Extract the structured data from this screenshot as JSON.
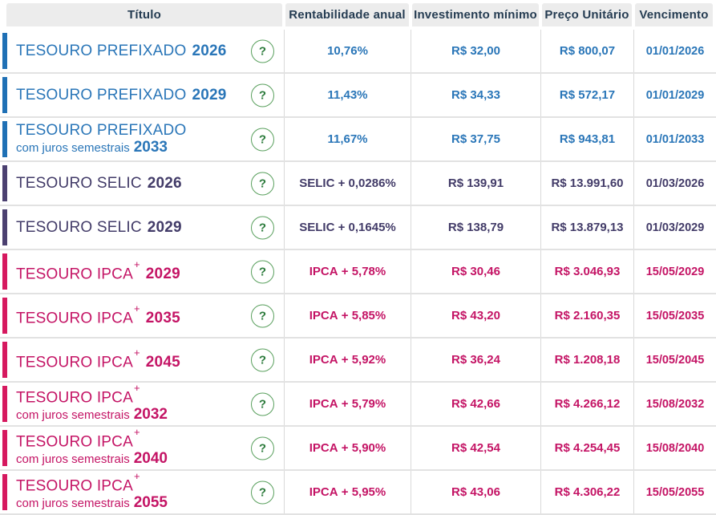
{
  "table": {
    "columns": [
      {
        "key": "titulo",
        "label": "Título"
      },
      {
        "key": "rentabilidade",
        "label": "Rentabilidade anual"
      },
      {
        "key": "investimento",
        "label": "Investimento mínimo"
      },
      {
        "key": "preco",
        "label": "Preço Unitário"
      },
      {
        "key": "vencimento",
        "label": "Vencimento"
      }
    ],
    "help_label": "?",
    "rows": [
      {
        "category": "prefixado",
        "name": "TESOURO PREFIXADO",
        "sup": "",
        "subtitle": "",
        "year": "2026",
        "rent_prefix": "",
        "rent_value": "10,76%",
        "investimento": "R$ 32,00",
        "preco": "R$ 800,07",
        "vencimento": "01/01/2026"
      },
      {
        "category": "prefixado",
        "name": "TESOURO PREFIXADO",
        "sup": "",
        "subtitle": "",
        "year": "2029",
        "rent_prefix": "",
        "rent_value": "11,43%",
        "investimento": "R$ 34,33",
        "preco": "R$ 572,17",
        "vencimento": "01/01/2029"
      },
      {
        "category": "prefixado",
        "name": "TESOURO PREFIXADO",
        "sup": "",
        "subtitle": "com juros semestrais",
        "year": "2033",
        "rent_prefix": "",
        "rent_value": "11,67%",
        "investimento": "R$ 37,75",
        "preco": "R$ 943,81",
        "vencimento": "01/01/2033"
      },
      {
        "category": "selic",
        "name": "TESOURO SELIC",
        "sup": "",
        "subtitle": "",
        "year": "2026",
        "rent_prefix": "SELIC",
        "rent_value": " + 0,0286%",
        "investimento": "R$ 139,91",
        "preco": "R$ 13.991,60",
        "vencimento": "01/03/2026"
      },
      {
        "category": "selic",
        "name": "TESOURO SELIC",
        "sup": "",
        "subtitle": "",
        "year": "2029",
        "rent_prefix": "SELIC",
        "rent_value": " + 0,1645%",
        "investimento": "R$ 138,79",
        "preco": "R$ 13.879,13",
        "vencimento": "01/03/2029"
      },
      {
        "category": "ipca",
        "name": "TESOURO IPCA",
        "sup": "+",
        "subtitle": "",
        "year": "2029",
        "rent_prefix": "IPCA",
        "rent_value": " + 5,78%",
        "investimento": "R$ 30,46",
        "preco": "R$ 3.046,93",
        "vencimento": "15/05/2029"
      },
      {
        "category": "ipca",
        "name": "TESOURO IPCA",
        "sup": "+",
        "subtitle": "",
        "year": "2035",
        "rent_prefix": "IPCA",
        "rent_value": " + 5,85%",
        "investimento": "R$ 43,20",
        "preco": "R$ 2.160,35",
        "vencimento": "15/05/2035"
      },
      {
        "category": "ipca",
        "name": "TESOURO IPCA",
        "sup": "+",
        "subtitle": "",
        "year": "2045",
        "rent_prefix": "IPCA",
        "rent_value": " + 5,92%",
        "investimento": "R$ 36,24",
        "preco": "R$ 1.208,18",
        "vencimento": "15/05/2045"
      },
      {
        "category": "ipca",
        "name": "TESOURO IPCA",
        "sup": "+",
        "subtitle": "com juros semestrais",
        "year": "2032",
        "rent_prefix": "IPCA",
        "rent_value": " + 5,79%",
        "investimento": "R$ 42,66",
        "preco": "R$ 4.266,12",
        "vencimento": "15/08/2032"
      },
      {
        "category": "ipca",
        "name": "TESOURO IPCA",
        "sup": "+",
        "subtitle": "com juros semestrais",
        "year": "2040",
        "rent_prefix": "IPCA",
        "rent_value": " + 5,90%",
        "investimento": "R$ 42,54",
        "preco": "R$ 4.254,45",
        "vencimento": "15/08/2040"
      },
      {
        "category": "ipca",
        "name": "TESOURO IPCA",
        "sup": "+",
        "subtitle": "com juros semestrais",
        "year": "2055",
        "rent_prefix": "IPCA",
        "rent_value": " + 5,95%",
        "investimento": "R$ 43,06",
        "preco": "R$ 4.306,22",
        "vencimento": "15/05/2055"
      }
    ]
  },
  "colors": {
    "header_bg": "#ececec",
    "header_text": "#253c52",
    "prefixado": "#2a76b8",
    "prefixado_bar": "#1f70b5",
    "selic": "#423b68",
    "selic_bar": "#4b4070",
    "ipca": "#c41465",
    "ipca_bar": "#d6195f",
    "help_border": "#5aa05e",
    "help_text": "#2b7a3b",
    "grid_line": "#d9d9d9",
    "row_line": "#e2e2e2"
  }
}
